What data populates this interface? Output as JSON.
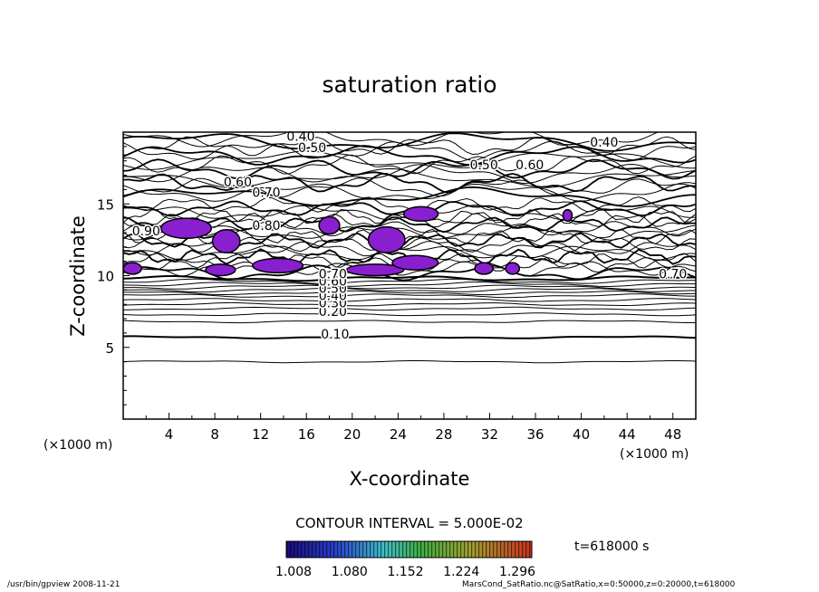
{
  "chart_data": {
    "type": "heatmap",
    "title": "saturation ratio",
    "xlabel": "X-coordinate",
    "ylabel": "Z-coordinate",
    "x_unit": "(×1000 m)",
    "y_unit": "",
    "xlim": [
      0,
      50
    ],
    "ylim": [
      0,
      20
    ],
    "x_ticks": [
      "4",
      "8",
      "12",
      "16",
      "20",
      "24",
      "28",
      "32",
      "36",
      "40",
      "44",
      "48"
    ],
    "y_ticks": [
      "5",
      "10",
      "15"
    ],
    "contour_interval_label": "CONTOUR INTERVAL = 5.000E-02",
    "contour_labels": [
      "0.40",
      "0.50",
      "0.60",
      "0.70",
      "0.80",
      "0.90",
      "0.10",
      "0.20",
      "0.30",
      "0.40",
      "0.50",
      "0.60",
      "0.70",
      "0.40",
      "0.50",
      "0.60",
      "0.70"
    ],
    "colorbar_ticks": [
      "1.008",
      "1.080",
      "1.152",
      "1.224",
      "1.296"
    ],
    "colorbar_range": [
      1.008,
      1.296
    ],
    "supersaturated_color": "#8a1fd0",
    "time_label": "t=618000 s"
  },
  "footer": {
    "left": "/usr/bin/gpview   2008-11-21",
    "right": "MarsCond_SatRatio.nc@SatRatio,x=0:50000,z=0:20000,t=618000"
  }
}
